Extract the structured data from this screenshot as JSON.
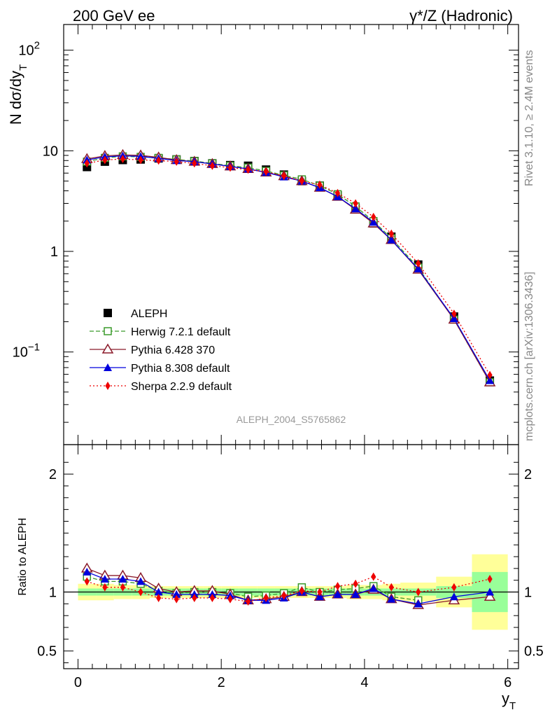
{
  "header": {
    "left": "200 GeV ee",
    "right": "γ*/Z (Hadronic)"
  },
  "side": {
    "rivet": "Rivet 3.1.10, ≥ 2.4M events",
    "mcplots": "mcplots.cern.ch [arXiv:1306.3436]"
  },
  "analysis_id": "ALEPH_2004_S5765862",
  "chart_data": [
    {
      "panel": "main",
      "type": "scatter",
      "yscale": "log",
      "ylabel": "N dσ/dy",
      "ylabel_sub": "T",
      "xlim": [
        -0.2,
        6.15
      ],
      "ylim": [
        0.012,
        180
      ],
      "y_ticks": [
        {
          "v": 0.1,
          "base": "10",
          "exp": "−1"
        },
        {
          "v": 1,
          "base": "1",
          "exp": ""
        },
        {
          "v": 10,
          "base": "10",
          "exp": ""
        },
        {
          "v": 100,
          "base": "10",
          "exp": "2"
        }
      ],
      "x": [
        0.125,
        0.375,
        0.625,
        0.875,
        1.125,
        1.375,
        1.625,
        1.875,
        2.125,
        2.375,
        2.625,
        2.875,
        3.125,
        3.375,
        3.625,
        3.875,
        4.125,
        4.375,
        4.75,
        5.25,
        5.75
      ],
      "series": [
        {
          "name": "ALEPH",
          "color": "#000000",
          "marker": "square",
          "line": "none",
          "values": [
            6.9,
            7.8,
            8.1,
            8.2,
            8.4,
            8.2,
            7.9,
            7.5,
            7.2,
            7.1,
            6.5,
            5.8,
            5.0,
            4.5,
            3.6,
            2.7,
            1.9,
            1.4,
            0.74,
            0.225,
            0.052
          ]
        },
        {
          "name": "Herwig 7.2.1 default",
          "color": "#3a9a2a",
          "marker": "open-square",
          "line": "dashed",
          "values": [
            7.8,
            8.5,
            8.8,
            8.7,
            8.5,
            8.2,
            7.9,
            7.5,
            7.1,
            6.8,
            6.3,
            5.7,
            5.2,
            4.5,
            3.7,
            2.8,
            2.0,
            1.35,
            0.69,
            0.21,
            0.05
          ]
        },
        {
          "name": "Pythia 6.428 370",
          "color": "#8b1a2a",
          "marker": "open-triangle",
          "line": "solid",
          "values": [
            8.3,
            8.9,
            9.1,
            9.0,
            8.6,
            8.1,
            7.8,
            7.4,
            7.0,
            6.6,
            6.1,
            5.6,
            5.0,
            4.3,
            3.5,
            2.6,
            1.9,
            1.3,
            0.66,
            0.21,
            0.05
          ]
        },
        {
          "name": "Pythia 8.308 default",
          "color": "#0000dd",
          "marker": "triangle",
          "line": "solid",
          "values": [
            8.1,
            8.7,
            8.9,
            8.8,
            8.4,
            8.0,
            7.8,
            7.4,
            7.0,
            6.6,
            6.1,
            5.5,
            5.0,
            4.3,
            3.5,
            2.65,
            1.95,
            1.3,
            0.67,
            0.215,
            0.052
          ]
        },
        {
          "name": "Sherpa 2.2.9 default",
          "color": "#ee0000",
          "marker": "diamond",
          "line": "dotted",
          "values": [
            7.5,
            8.1,
            8.3,
            8.1,
            8.0,
            7.8,
            7.5,
            7.1,
            6.8,
            6.5,
            6.2,
            5.6,
            5.0,
            4.6,
            3.8,
            3.0,
            2.2,
            1.5,
            0.76,
            0.24,
            0.059
          ]
        }
      ]
    },
    {
      "panel": "ratio",
      "type": "line",
      "yscale": "linear",
      "ylabel": "Ratio to ALEPH",
      "xlabel": "y",
      "xlabel_sub": "T",
      "xlim": [
        -0.2,
        6.15
      ],
      "ylim": [
        0.35,
        2.25
      ],
      "x_ticks": [
        0,
        2,
        4,
        6
      ],
      "y_ticks": [
        0.5,
        1,
        2
      ],
      "bands": {
        "edges": [
          0,
          0.25,
          0.5,
          0.75,
          1.0,
          1.25,
          1.5,
          1.75,
          2.0,
          2.25,
          2.5,
          2.75,
          3.0,
          3.25,
          3.5,
          3.75,
          4.0,
          4.25,
          4.5,
          5.0,
          5.5,
          6.0
        ],
        "stat_half_width": [
          0.03,
          0.03,
          0.03,
          0.03,
          0.03,
          0.03,
          0.03,
          0.03,
          0.03,
          0.03,
          0.03,
          0.03,
          0.03,
          0.03,
          0.03,
          0.03,
          0.03,
          0.03,
          0.03,
          0.05,
          0.17
        ],
        "total_half_width": [
          0.07,
          0.07,
          0.06,
          0.06,
          0.05,
          0.05,
          0.05,
          0.05,
          0.05,
          0.05,
          0.05,
          0.05,
          0.05,
          0.05,
          0.05,
          0.06,
          0.06,
          0.07,
          0.08,
          0.13,
          0.32
        ],
        "stat_color": "#99ff99",
        "total_color": "#ffff99"
      },
      "x": [
        0.125,
        0.375,
        0.625,
        0.875,
        1.125,
        1.375,
        1.625,
        1.875,
        2.125,
        2.375,
        2.625,
        2.875,
        3.125,
        3.375,
        3.625,
        3.875,
        4.125,
        4.375,
        4.75,
        5.25,
        5.75
      ],
      "series": [
        {
          "name": "Herwig 7.2.1 default",
          "color": "#3a9a2a",
          "marker": "open-square",
          "line": "dashed",
          "values": [
            1.13,
            1.09,
            1.09,
            1.07,
            1.01,
            0.99,
            1.0,
            1.0,
            0.99,
            0.96,
            0.97,
            0.99,
            1.04,
            1.0,
            1.02,
            1.03,
            1.05,
            0.96,
            0.93,
            null,
            null
          ]
        },
        {
          "name": "Pythia 6.428 370",
          "color": "#8b1a2a",
          "marker": "open-triangle",
          "line": "solid",
          "values": [
            1.2,
            1.14,
            1.14,
            1.12,
            1.03,
            1.0,
            1.01,
            1.01,
            0.98,
            0.93,
            0.94,
            0.96,
            1.0,
            0.96,
            0.98,
            0.98,
            1.02,
            0.94,
            0.89,
            0.93,
            0.96
          ]
        },
        {
          "name": "Pythia 8.308 default",
          "color": "#0000dd",
          "marker": "triangle",
          "line": "solid",
          "values": [
            1.17,
            1.11,
            1.11,
            1.09,
            1.0,
            0.98,
            0.98,
            0.98,
            0.97,
            0.93,
            0.93,
            0.95,
            1.0,
            0.96,
            0.98,
            0.98,
            1.03,
            0.94,
            0.9,
            0.96,
            1.0
          ]
        },
        {
          "name": "Sherpa 2.2.9 default",
          "color": "#ee0000",
          "marker": "diamond",
          "line": "dotted",
          "values": [
            1.09,
            1.04,
            1.04,
            1.0,
            0.95,
            0.94,
            0.95,
            0.95,
            0.94,
            0.92,
            0.95,
            0.97,
            1.01,
            1.0,
            1.05,
            1.07,
            1.13,
            1.04,
            1.0,
            1.04,
            1.11
          ]
        }
      ]
    }
  ]
}
